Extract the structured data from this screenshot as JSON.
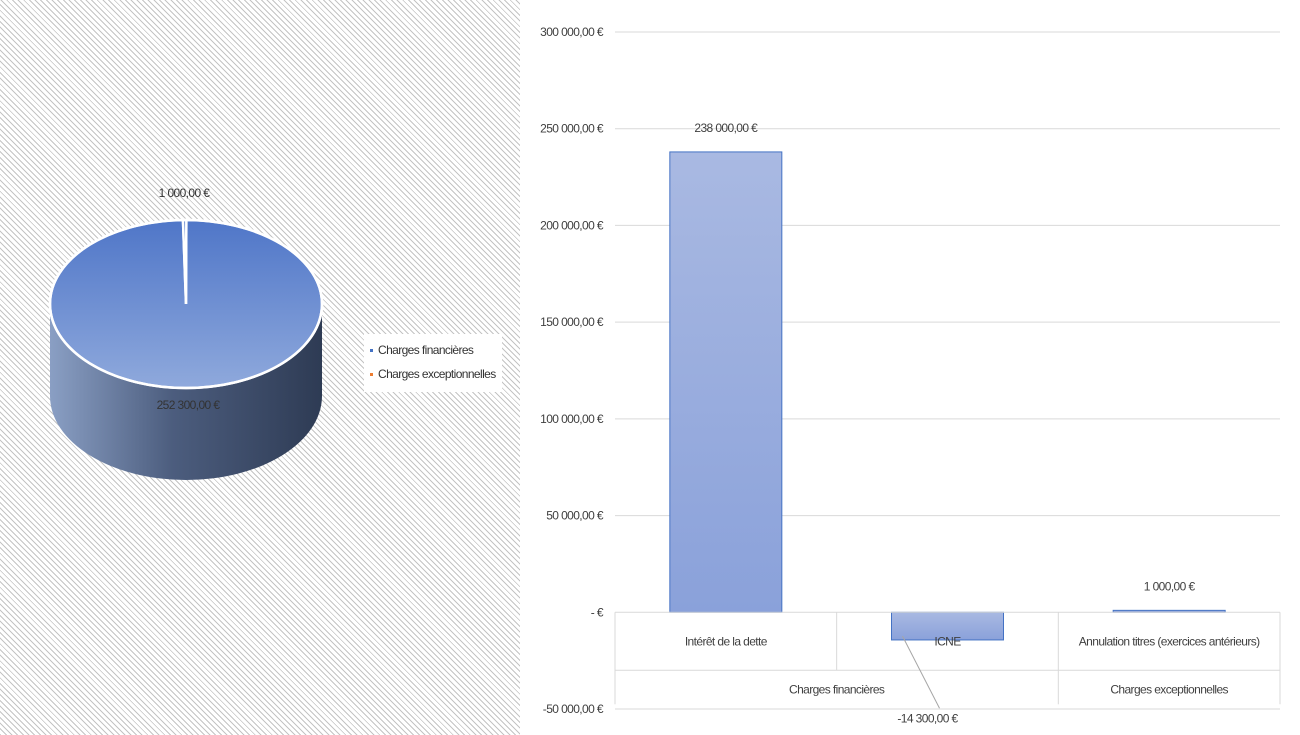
{
  "colors": {
    "pie_top": "#7f9cd8",
    "pie_side_dark": "#2e3b54",
    "bar_fill": "#97acdd",
    "bar_stroke": "#4472c4",
    "legend_series1": "#4472c4",
    "legend_series2": "#ed7d31",
    "grid": "#d9d9d9"
  },
  "pie": {
    "chart_data": {
      "type": "pie",
      "categories": [
        "Charges financières",
        "Charges exceptionnelles"
      ],
      "values": [
        252300,
        1000
      ],
      "data_labels": [
        "252 300,00 €",
        "1 000,00 €"
      ],
      "legend_placement": "right"
    },
    "legend": [
      {
        "label": "Charges financières",
        "color": "#4472c4"
      },
      {
        "label": "Charges exceptionnelles",
        "color": "#ed7d31"
      }
    ]
  },
  "bar": {
    "chart_data": {
      "type": "bar",
      "categories": [
        "Intérêt de la dette",
        "ICNE",
        "Annulation titres (exercices antérieurs)"
      ],
      "groups": [
        {
          "label": "Charges financières",
          "span": 2
        },
        {
          "label": "Charges exceptionnelles",
          "span": 1
        }
      ],
      "values": [
        238000,
        -14300,
        1000
      ],
      "data_labels": [
        "238 000,00 €",
        "-14 300,00 €",
        "1 000,00 €"
      ],
      "ylim": [
        -50000,
        300000
      ],
      "yticks": [
        300000,
        250000,
        200000,
        150000,
        100000,
        50000,
        0,
        -50000
      ],
      "ytick_labels": [
        "300 000,00 €",
        "250 000,00 €",
        "200 000,00 €",
        "150 000,00 €",
        "100 000,00 €",
        "50 000,00 €",
        "-   €",
        "-50 000,00 €"
      ],
      "grid": true
    }
  }
}
